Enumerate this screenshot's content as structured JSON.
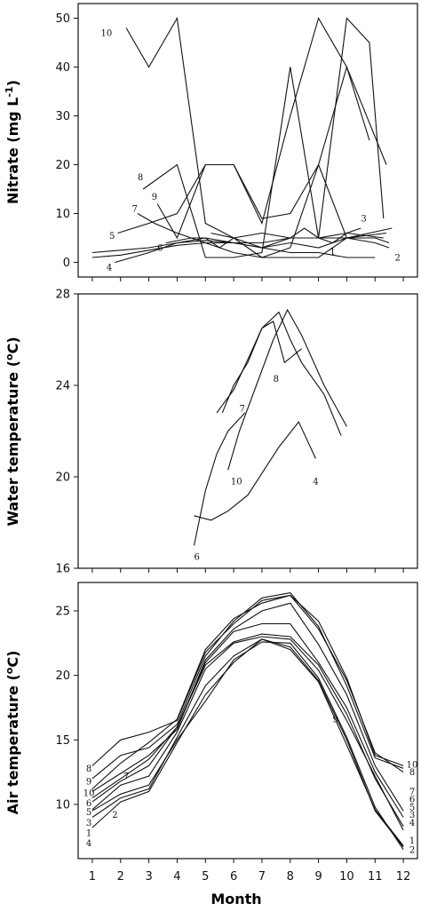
{
  "xlabel": "Month",
  "x_ticks": [
    "1",
    "2",
    "3",
    "4",
    "5",
    "6",
    "7",
    "8",
    "9",
    "10",
    "11",
    "12"
  ],
  "chart_data": [
    {
      "type": "line",
      "ylabel": "Nitrate (mg L",
      "ylabel_sup": "-1",
      "ylabel_end": ")",
      "ylim": [
        -3,
        53
      ],
      "xlim": [
        0.5,
        12.5
      ],
      "yticks": [
        0,
        10,
        20,
        30,
        40,
        50
      ],
      "series": [
        {
          "name": "1",
          "label_text": "1",
          "label_at": [
            9.5,
            2.2
          ],
          "x": [
            1,
            2,
            3,
            4,
            5,
            6,
            7,
            8,
            9,
            10,
            11
          ],
          "y": [
            1,
            1.5,
            2.5,
            3.5,
            4,
            4,
            3,
            2,
            2,
            1,
            1
          ]
        },
        {
          "name": "2",
          "label_text": "2",
          "label_at": [
            11.8,
            1
          ],
          "x": [
            1,
            2,
            3,
            4,
            5,
            6,
            7,
            8,
            9,
            10,
            11,
            11.5
          ],
          "y": [
            2,
            2.5,
            3,
            4,
            4.5,
            4,
            4,
            5,
            5,
            5,
            4,
            3
          ]
        },
        {
          "name": "3",
          "label_text": "3",
          "label_at": [
            10.6,
            9
          ],
          "x": [
            5.2,
            6,
            7,
            8,
            8.5,
            9,
            9.5,
            10,
            10.5
          ],
          "y": [
            6,
            5,
            3,
            5,
            7,
            5,
            4,
            6,
            7
          ]
        },
        {
          "name": "4",
          "label_text": "4",
          "label_at": [
            1.6,
            -1
          ],
          "x": [
            1.8,
            3,
            4,
            5,
            6,
            7,
            8,
            9,
            10,
            11,
            11.5
          ],
          "y": [
            0,
            2,
            4,
            5,
            4,
            3,
            4,
            3,
            5,
            5,
            4
          ]
        },
        {
          "name": "5",
          "label_text": "5",
          "label_at": [
            1.7,
            5.5
          ],
          "x": [
            1.9,
            3,
            4,
            5,
            6,
            7,
            8,
            9,
            10,
            11.6
          ],
          "y": [
            6,
            8,
            10,
            20,
            20,
            9,
            10,
            20,
            5,
            7
          ]
        },
        {
          "name": "6",
          "label_text": "6",
          "label_at": [
            3.4,
            3
          ],
          "x": [
            3.6,
            4.5,
            5,
            5.5,
            6,
            7,
            8,
            9,
            10,
            11.3
          ],
          "y": [
            4,
            5,
            5,
            3,
            5,
            6,
            5,
            5,
            6,
            5
          ]
        },
        {
          "name": "7",
          "label_text": "7",
          "label_at": [
            2.5,
            11
          ],
          "x": [
            2.6,
            3.2,
            4,
            5,
            6,
            7,
            8,
            9,
            10,
            11.4
          ],
          "y": [
            10,
            8,
            6,
            4,
            2,
            1,
            1,
            1,
            5,
            6
          ]
        },
        {
          "name": "8",
          "label_text": "8",
          "label_at": [
            2.7,
            17.5
          ],
          "x": [
            2.8,
            4,
            5,
            6,
            7,
            8,
            9,
            10,
            10.8,
            11.3
          ],
          "y": [
            15,
            20,
            1,
            1,
            2,
            40,
            5,
            50,
            45,
            9
          ]
        },
        {
          "name": "9",
          "label_text": "9",
          "label_at": [
            3.2,
            13.5
          ],
          "x": [
            3.3,
            4,
            5,
            6,
            7,
            8,
            9,
            10,
            10.8
          ],
          "y": [
            12,
            5,
            20,
            20,
            8,
            30,
            50,
            40,
            25
          ]
        },
        {
          "name": "10",
          "label_text": "10",
          "label_at": [
            1.5,
            47
          ],
          "x": [
            2.2,
            3,
            4,
            5,
            6,
            7,
            8,
            9,
            10,
            11.4
          ],
          "y": [
            48,
            40,
            50,
            8,
            5,
            1,
            3,
            20,
            40,
            20
          ]
        }
      ]
    },
    {
      "type": "line",
      "ylabel": "Water temperature (",
      "ylabel_sup": "o",
      "ylabel_end": "C)",
      "ylim": [
        16,
        28
      ],
      "xlim": [
        0.5,
        12.5
      ],
      "yticks": [
        16,
        20,
        24,
        28
      ],
      "series": [
        {
          "name": "4",
          "label_text": "4",
          "label_at": [
            8.9,
            19.8
          ],
          "x": [
            4.6,
            5.2,
            5.8,
            6.5,
            7.6,
            8.3,
            8.9
          ],
          "y": [
            18.3,
            18.1,
            18.5,
            19.2,
            21.3,
            22.4,
            20.8
          ]
        },
        {
          "name": "6",
          "label_text": "6",
          "label_at": [
            4.7,
            16.5
          ],
          "x": [
            4.6,
            5.0,
            5.4,
            5.8,
            6.4
          ],
          "y": [
            17.0,
            19.4,
            21.0,
            22.0,
            22.8
          ]
        },
        {
          "name": "7",
          "label_text": "7",
          "label_at": [
            6.3,
            23.0
          ],
          "x": [
            5.6,
            6.0,
            6.5,
            7.0,
            7.4,
            7.8,
            8.4
          ],
          "y": [
            22.8,
            24.0,
            25.0,
            26.5,
            26.8,
            25.0,
            25.6
          ]
        },
        {
          "name": "8",
          "label_text": "8",
          "label_at": [
            7.5,
            24.3
          ],
          "x": [
            5.4,
            6.0,
            6.6,
            7.0,
            7.6,
            8.0,
            8.4,
            9.2,
            9.8
          ],
          "y": [
            22.8,
            23.8,
            25.4,
            26.5,
            27.2,
            26.0,
            25.0,
            23.6,
            21.8
          ]
        },
        {
          "name": "10",
          "label_text": "10",
          "label_at": [
            6.1,
            19.8
          ],
          "x": [
            5.8,
            6.2,
            6.8,
            7.4,
            7.9,
            8.4,
            9.2,
            10.0
          ],
          "y": [
            20.3,
            22.0,
            24.0,
            26.0,
            27.3,
            26.2,
            24.0,
            22.2
          ]
        }
      ]
    },
    {
      "type": "line",
      "ylabel": "Air temperature (",
      "ylabel_sup": "o",
      "ylabel_end": "C)",
      "ylim": [
        5.8,
        27.2
      ],
      "xlim": [
        0.5,
        12.5
      ],
      "yticks": [
        10,
        15,
        20,
        25
      ],
      "series": [
        {
          "name": "1",
          "label_text": "1",
          "label_at": [
            0.9,
            8.6
          ],
          "x": [
            1,
            2,
            3,
            4,
            5,
            6,
            7,
            8,
            9,
            10,
            11,
            12
          ],
          "y": [
            9,
            10.5,
            11.2,
            15.2,
            19.2,
            21.5,
            22.8,
            22.2,
            19.6,
            15,
            9.5,
            6.7
          ]
        },
        {
          "name": "2",
          "label_text": "2",
          "label_at": [
            1.8,
            9.2
          ],
          "x": [
            1,
            2,
            3,
            4,
            5,
            6,
            7,
            8,
            9,
            10,
            11,
            12
          ],
          "y": [
            9.5,
            10.8,
            11.5,
            15,
            18,
            21.2,
            22.6,
            22.5,
            19.8,
            15.2,
            9.8,
            6.5
          ]
        },
        {
          "name": "3",
          "label_text": "3",
          "label_at": [
            0.9,
            9.6
          ],
          "x": [
            1,
            2,
            3,
            4,
            5,
            6,
            7,
            8,
            9,
            10,
            11,
            12
          ],
          "y": [
            9.6,
            11.5,
            12.2,
            15.6,
            20.5,
            22.5,
            23.0,
            22.8,
            20.4,
            16.5,
            12.2,
            8.0
          ]
        },
        {
          "name": "4",
          "label_text": "4",
          "label_at": [
            0.9,
            8.0
          ],
          "x": [
            1,
            2,
            3,
            4,
            5,
            6,
            7,
            8,
            9,
            10,
            11,
            12
          ],
          "y": [
            8.2,
            10.2,
            11.0,
            14.8,
            18.5,
            21.0,
            22.8,
            22.0,
            19.5,
            14.6,
            9.6,
            6.8
          ]
        },
        {
          "name": "5",
          "label_text": "5",
          "label_at": [
            0.9,
            10.2
          ],
          "x": [
            1,
            2,
            3,
            4,
            5,
            6,
            7,
            8,
            9,
            10,
            11,
            12
          ],
          "y": [
            10.2,
            11.8,
            13.0,
            16.0,
            20.8,
            22.6,
            23.2,
            23.0,
            20.8,
            17.0,
            12.0,
            8.3
          ]
        },
        {
          "name": "6",
          "label_text": "6",
          "label_at": [
            0.9,
            10.8
          ],
          "x": [
            1,
            2,
            3,
            4,
            5,
            6,
            7,
            8,
            9,
            10,
            11,
            12
          ],
          "y": [
            10.5,
            12.0,
            13.5,
            16.0,
            21.0,
            23.4,
            24.0,
            24.0,
            21.0,
            17.5,
            12.5,
            9.0
          ]
        },
        {
          "name": "7",
          "label_text": "7",
          "label_at": [
            2.2,
            12.2
          ],
          "x": [
            1,
            2,
            3,
            4,
            5,
            6,
            7,
            8,
            9,
            10,
            11,
            12
          ],
          "y": [
            11.0,
            12.4,
            13.8,
            15.8,
            21.2,
            23.6,
            25.0,
            25.6,
            22.4,
            18.5,
            13.0,
            9.5
          ]
        },
        {
          "name": "8",
          "label_text": "8",
          "label_at": [
            0.9,
            12.8
          ],
          "x": [
            1,
            2,
            3,
            4,
            5,
            6,
            7,
            8,
            9,
            10,
            11,
            12
          ],
          "y": [
            13.0,
            15.0,
            15.6,
            16.5,
            21.8,
            24.0,
            25.8,
            26.2,
            23.6,
            19.6,
            14.0,
            12.5
          ]
        },
        {
          "name": "9",
          "label_text": "9",
          "label_at": [
            0.9,
            11.9
          ],
          "x": [
            1,
            2,
            3,
            4,
            5,
            6,
            7,
            8,
            9,
            10,
            11,
            12
          ],
          "y": [
            12.0,
            13.8,
            14.4,
            16.2,
            21.5,
            24.2,
            26.0,
            26.4,
            23.8,
            19.2,
            13.6,
            12.8
          ]
        },
        {
          "name": "10",
          "label_text": "10",
          "label_at": [
            0.9,
            11.2
          ],
          "x": [
            1,
            2,
            3,
            4,
            5,
            6,
            7,
            8,
            9,
            10,
            11,
            12
          ],
          "y": [
            11.2,
            13.2,
            14.8,
            16.6,
            22.0,
            24.4,
            25.6,
            26.2,
            24.2,
            19.8,
            13.8,
            13.0
          ]
        }
      ],
      "right_labels": [
        {
          "text": "10",
          "y": 13.1
        },
        {
          "text": "8",
          "y": 12.5
        },
        {
          "text": "7",
          "y": 11.0
        },
        {
          "text": "6",
          "y": 10.4
        },
        {
          "text": "5",
          "y": 9.8
        },
        {
          "text": "3",
          "y": 9.2
        },
        {
          "text": "4",
          "y": 8.6
        },
        {
          "text": "1",
          "y": 7.2
        },
        {
          "text": "2",
          "y": 6.5
        }
      ],
      "inner_label": {
        "text": "9",
        "x": 9.6,
        "y": 16.6
      }
    }
  ]
}
